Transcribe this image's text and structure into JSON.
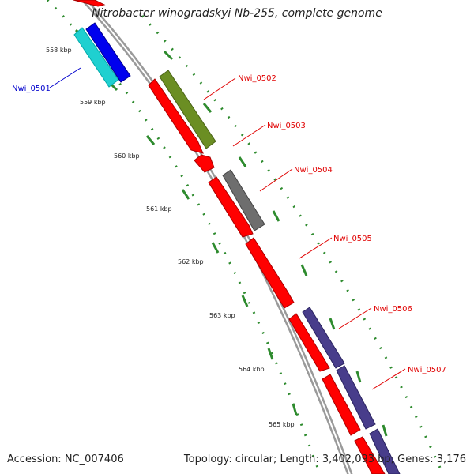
{
  "title": "Nitrobacter winogradskyi Nb-255, complete genome",
  "footer": {
    "accession": "Accession: NC_007406",
    "summary": "Topology: circular; Length: 3,402,093 bp; Genes: 3,176"
  },
  "colors": {
    "backbone": "#9a9a9a",
    "ticks": "#2e8b2e",
    "gene_red": "#ff0000",
    "gene_blue": "#0000ee",
    "gene_cyan": "#1fd0d0",
    "gene_olive": "#6b8e23",
    "gene_gray": "#6e6e6e",
    "gene_purple": "#483d8b",
    "label_red": "#e00000",
    "label_blue": "#0000cc"
  },
  "scale_labels": [
    "558 kbp",
    "559 kbp",
    "560 kbp",
    "561 kbp",
    "562 kbp",
    "563 kbp",
    "564 kbp",
    "565 kbp"
  ],
  "gene_labels": [
    {
      "name": "Nwi_0501",
      "color": "blue"
    },
    {
      "name": "Nwi_0502",
      "color": "red"
    },
    {
      "name": "Nwi_0503",
      "color": "red"
    },
    {
      "name": "Nwi_0504",
      "color": "red"
    },
    {
      "name": "Nwi_0505",
      "color": "red"
    },
    {
      "name": "Nwi_0506",
      "color": "red"
    },
    {
      "name": "Nwi_0507",
      "color": "red"
    }
  ]
}
